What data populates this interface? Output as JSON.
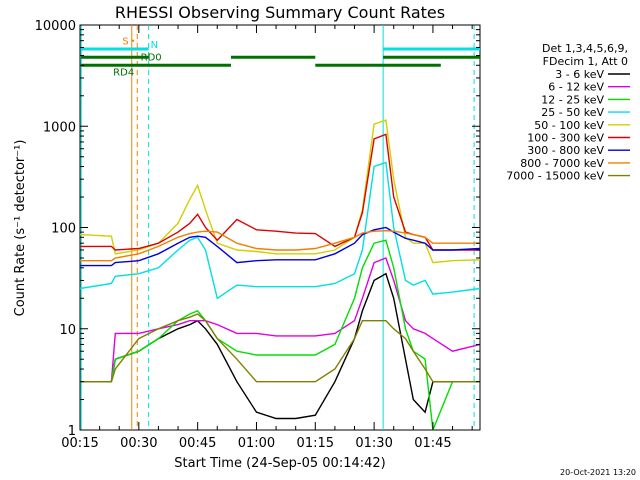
{
  "chart_data": {
    "type": "line",
    "title": "RHESSI Observing Summary Count Rates",
    "xlabel": "Start Time (24-Sep-05 00:14:42)",
    "ylabel": "Count Rate (s⁻¹ detector⁻¹)",
    "yscale": "log",
    "ylim": [
      1,
      10000
    ],
    "xlim_minutes": [
      0,
      102
    ],
    "x_ticks": [
      {
        "t": 0,
        "label": "00:15"
      },
      {
        "t": 15,
        "label": "00:30"
      },
      {
        "t": 30,
        "label": "00:45"
      },
      {
        "t": 45,
        "label": "01:00"
      },
      {
        "t": 60,
        "label": "01:15"
      },
      {
        "t": 75,
        "label": "01:30"
      },
      {
        "t": 90,
        "label": "01:45"
      }
    ],
    "y_ticks": [
      {
        "v": 1,
        "label": "1"
      },
      {
        "v": 10,
        "label": "10"
      },
      {
        "v": 100,
        "label": "100"
      },
      {
        "v": 1000,
        "label": "1000"
      },
      {
        "v": 10000,
        "label": "10000"
      }
    ],
    "legend_header": [
      "Det 1,3,4,5,6,9,",
      "FDecim 1, Att 0"
    ],
    "series": [
      {
        "name": "3 - 6 keV",
        "color": "#000000",
        "x": [
          0,
          8,
          9,
          15,
          20,
          25,
          28,
          30,
          32,
          35,
          40,
          45,
          50,
          55,
          60,
          65,
          70,
          72,
          75,
          78,
          80,
          83,
          85,
          88,
          90,
          95,
          102
        ],
        "y": [
          3,
          3,
          5,
          6,
          8,
          10,
          11,
          12,
          10,
          7,
          3,
          1.5,
          1.3,
          1.3,
          1.4,
          3,
          8,
          15,
          30,
          35,
          20,
          5,
          2,
          1.5,
          3,
          3,
          3
        ]
      },
      {
        "name": "6 - 12 keV",
        "color": "#e000e0",
        "x": [
          0,
          8,
          9,
          15,
          20,
          25,
          28,
          30,
          32,
          35,
          40,
          45,
          50,
          55,
          60,
          65,
          70,
          72,
          75,
          78,
          80,
          83,
          85,
          88,
          90,
          95,
          102
        ],
        "y": [
          3,
          3,
          9,
          9,
          10,
          11,
          12,
          12,
          12,
          11,
          9,
          9,
          8.5,
          8.5,
          8.5,
          9,
          12,
          20,
          45,
          50,
          30,
          12,
          10,
          9,
          8,
          6,
          7
        ]
      },
      {
        "name": "12 - 25 keV",
        "color": "#00e000",
        "x": [
          0,
          8,
          9,
          15,
          20,
          25,
          28,
          30,
          32,
          35,
          40,
          45,
          50,
          55,
          60,
          65,
          70,
          72,
          75,
          78,
          80,
          83,
          85,
          88,
          90,
          95,
          102
        ],
        "y": [
          3,
          3,
          5,
          6,
          8,
          12,
          14,
          15,
          12,
          8,
          6,
          5.5,
          5.5,
          5.5,
          5.5,
          7,
          20,
          40,
          70,
          75,
          40,
          10,
          6,
          5,
          1,
          3,
          3
        ]
      },
      {
        "name": "25 - 50 keV",
        "color": "#00e0e0",
        "x": [
          0,
          8,
          9,
          15,
          20,
          25,
          28,
          30,
          32,
          35,
          40,
          45,
          50,
          55,
          60,
          65,
          70,
          72,
          75,
          78,
          80,
          83,
          85,
          88,
          90,
          95,
          102
        ],
        "y": [
          25,
          28,
          33,
          35,
          40,
          60,
          75,
          80,
          60,
          20,
          27,
          26,
          26,
          26,
          26,
          28,
          35,
          60,
          400,
          440,
          100,
          30,
          27,
          30,
          22,
          23,
          25
        ]
      },
      {
        "name": "50 - 100 keV",
        "color": "#d0d000",
        "x": [
          0,
          8,
          9,
          15,
          20,
          25,
          28,
          30,
          32,
          35,
          40,
          45,
          50,
          55,
          60,
          65,
          70,
          72,
          75,
          78,
          80,
          83,
          85,
          88,
          90,
          95,
          102
        ],
        "y": [
          85,
          82,
          55,
          60,
          70,
          110,
          190,
          260,
          150,
          70,
          60,
          58,
          55,
          55,
          55,
          60,
          80,
          150,
          1050,
          1150,
          300,
          80,
          70,
          70,
          45,
          47,
          48
        ]
      },
      {
        "name": "100 - 300 keV",
        "color": "#e00000",
        "x": [
          0,
          8,
          9,
          15,
          20,
          25,
          28,
          30,
          32,
          35,
          40,
          45,
          50,
          55,
          60,
          65,
          70,
          72,
          75,
          78,
          80,
          83,
          85,
          88,
          90,
          95,
          102
        ],
        "y": [
          65,
          65,
          60,
          62,
          70,
          90,
          110,
          135,
          100,
          75,
          120,
          95,
          92,
          88,
          87,
          65,
          80,
          140,
          750,
          830,
          200,
          90,
          85,
          80,
          60,
          60,
          60
        ]
      },
      {
        "name": "300 - 800 keV",
        "color": "#0000e0",
        "x": [
          0,
          8,
          9,
          15,
          20,
          25,
          28,
          30,
          32,
          35,
          40,
          45,
          50,
          55,
          60,
          65,
          70,
          72,
          75,
          78,
          80,
          83,
          85,
          88,
          90,
          95,
          102
        ],
        "y": [
          42,
          42,
          45,
          47,
          55,
          70,
          80,
          82,
          80,
          65,
          45,
          47,
          48,
          48,
          48,
          55,
          70,
          85,
          95,
          100,
          90,
          78,
          75,
          70,
          60,
          60,
          62
        ]
      },
      {
        "name": "800 - 7000 keV",
        "color": "#f08000",
        "x": [
          0,
          8,
          9,
          15,
          20,
          25,
          28,
          30,
          32,
          35,
          40,
          45,
          50,
          55,
          60,
          65,
          70,
          72,
          75,
          78,
          80,
          83,
          85,
          88,
          90,
          95,
          102
        ],
        "y": [
          47,
          47,
          50,
          55,
          65,
          80,
          87,
          90,
          92,
          90,
          70,
          62,
          60,
          60,
          62,
          70,
          80,
          88,
          92,
          93,
          92,
          88,
          85,
          80,
          70,
          70,
          70
        ]
      },
      {
        "name": "7000 - 15000 keV",
        "color": "#808000",
        "x": [
          0,
          8,
          9,
          15,
          20,
          25,
          28,
          30,
          32,
          35,
          40,
          45,
          50,
          55,
          60,
          65,
          70,
          72,
          75,
          78,
          80,
          83,
          85,
          88,
          90,
          95,
          102
        ],
        "y": [
          3,
          3,
          4,
          8,
          10,
          12,
          13,
          14,
          12,
          8,
          5,
          3,
          3,
          3,
          3,
          4,
          8,
          12,
          12,
          12,
          10,
          8,
          6,
          4,
          3,
          3,
          3
        ]
      }
    ],
    "vertical_lines": [
      {
        "t": 0.3,
        "color": "#00e0e0",
        "style": "solid"
      },
      {
        "t": 13.2,
        "color": "#f08000",
        "style": "solid"
      },
      {
        "t": 14.6,
        "color": "#f08000",
        "style": "dashed"
      },
      {
        "t": 17.5,
        "color": "#00e0e0",
        "style": "dashed"
      },
      {
        "t": 77.3,
        "color": "#00e0e0",
        "style": "solid"
      },
      {
        "t": 100.5,
        "color": "#00e0e0",
        "style": "dashed"
      }
    ],
    "status_bars": [
      {
        "label": "S",
        "color": "#f08000",
        "level": 7000,
        "segments": [
          [
            13.2,
            13.8
          ]
        ]
      },
      {
        "label": "N",
        "color": "#00e0e0",
        "level": 5800,
        "segments": [
          [
            0.3,
            17.5
          ],
          [
            77.3,
            102
          ]
        ]
      },
      {
        "label": "RD0",
        "color": "#007000",
        "level": 4800,
        "segments": [
          [
            0.3,
            17.5
          ],
          [
            38.5,
            60
          ],
          [
            77.3,
            102
          ]
        ]
      },
      {
        "label": "RD4",
        "color": "#007000",
        "level": 4000,
        "segments": [
          [
            0.3,
            38.5
          ],
          [
            60,
            92
          ]
        ]
      }
    ],
    "timestamp": "20-Oct-2021 13:20"
  }
}
